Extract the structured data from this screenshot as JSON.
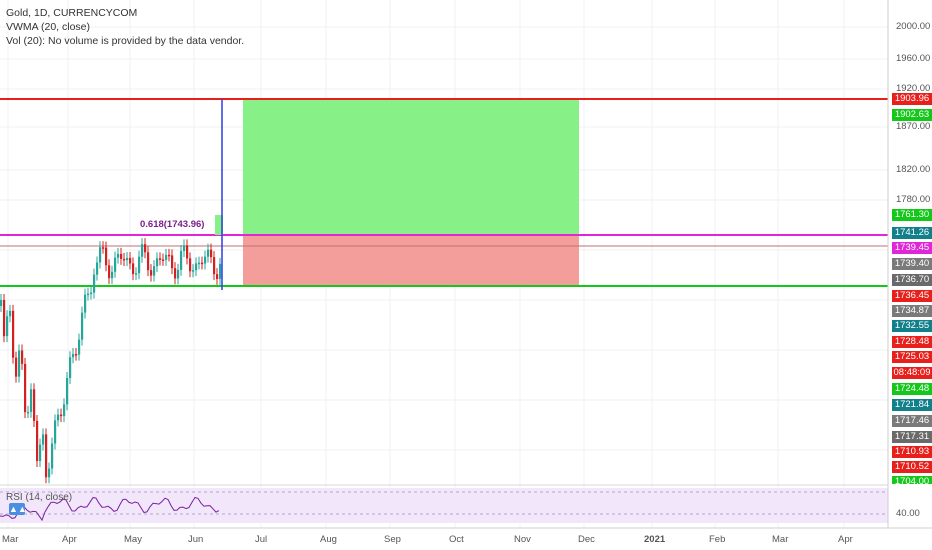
{
  "legend": {
    "line1": "Gold, 1D, CURRENCYCOM",
    "line2": "VWMA (20, close)",
    "line3": "Vol (20): No volume is provided by the data vendor."
  },
  "rsi_label": "RSI (14, close)",
  "fib_label": "0.618(1743.96)",
  "price_axis_ticks": [
    "2000.00",
    "1960.00",
    "1920.00",
    "1870.00",
    "1820.00",
    "1780.00"
  ],
  "rsi_axis_tick": "40.00",
  "time_axis": [
    "Mar",
    "Apr",
    "May",
    "Jun",
    "Jul",
    "Aug",
    "Sep",
    "Oct",
    "Nov",
    "Dec",
    "2021",
    "Feb",
    "Mar",
    "Apr"
  ],
  "price_tags": [
    {
      "label": "1903.96",
      "color": "#e8201c"
    },
    {
      "label": "1902.63",
      "color": "#14c81a"
    },
    {
      "label": "1761.30",
      "color": "#14c81a"
    },
    {
      "label": "1741.26",
      "color": "#12808a"
    },
    {
      "label": "1739.45",
      "color": "#e026d8"
    },
    {
      "label": "1739.40",
      "color": "#7a7a7a"
    },
    {
      "label": "1736.70",
      "color": "#6a6a6a"
    },
    {
      "label": "1736.45",
      "color": "#e8201c"
    },
    {
      "label": "1734.87",
      "color": "#7a7a7a"
    },
    {
      "label": "1732.55",
      "color": "#12808a"
    },
    {
      "label": "1728.48",
      "color": "#e8201c"
    },
    {
      "label": "1725.03",
      "color": "#e8201c"
    },
    {
      "label": "08:48:09",
      "color": "#e8201c"
    },
    {
      "label": "1724.48",
      "color": "#14c81a"
    },
    {
      "label": "1721.84",
      "color": "#12808a"
    },
    {
      "label": "1717.46",
      "color": "#7a7a7a"
    },
    {
      "label": "1717.31",
      "color": "#6a6a6a"
    },
    {
      "label": "1710.93",
      "color": "#e8201c"
    },
    {
      "label": "1710.52",
      "color": "#e8201c"
    },
    {
      "label": "1704.00",
      "color": "#14c81a"
    }
  ],
  "colors": {
    "upCandle": "#26a69a",
    "downCandle": "#d61f1f",
    "stopLine": "#e8201c",
    "targetLine": "#14c81a",
    "entryLine": "#e026d8",
    "verticalLine": "#2b3ee8",
    "profitZone": "#87f087",
    "lossZone": "#f49e9b",
    "rsiBackground": "#f1e6fa",
    "rsiLine": "#7b1fa2"
  },
  "icons": {
    "rsi_toggle": "triangles-icon"
  }
}
